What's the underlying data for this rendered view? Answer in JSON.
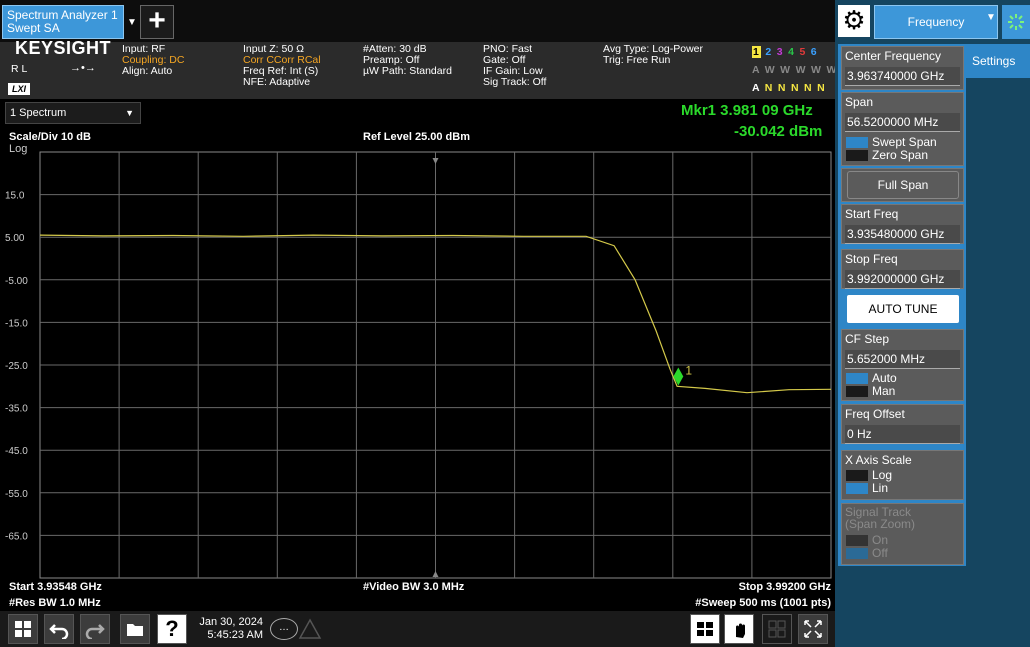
{
  "topbar": {
    "tab_label": "Spectrum Analyzer 1\nSwept SA",
    "tab_line1": "Spectrum Analyzer 1",
    "tab_line2": "Swept SA",
    "add_icon": "plus-icon"
  },
  "infobar": {
    "brand": "KEYSIGHT",
    "rl": "R L",
    "lxi": "LXI",
    "col1": [
      "Input: RF",
      "Coupling: DC",
      "Align: Auto"
    ],
    "col2": [
      "Input Z: 50 Ω",
      "Corr CCorr RCal",
      "Freq Ref: Int (S)",
      "NFE: Adaptive"
    ],
    "col3": [
      "#Atten: 30 dB",
      "Preamp: Off",
      "µW Path: Standard"
    ],
    "col4": [
      "PNO: Fast",
      "Gate: Off",
      "IF Gain: Low",
      "Sig Track: Off"
    ],
    "col5": [
      "Avg Type: Log-Power",
      "Trig: Free Run"
    ],
    "trace_row1": [
      "1",
      "2",
      "3",
      "4",
      "5",
      "6"
    ],
    "trace_row2": [
      "A",
      "W",
      "W",
      "W",
      "W",
      "W"
    ],
    "trace_row3": [
      "A",
      "N",
      "N",
      "N",
      "N",
      "N"
    ]
  },
  "plot": {
    "window_select": "1 Spectrum",
    "scale_div": "Scale/Div 10 dB",
    "scale_type": "Log",
    "ref_level": "Ref Level 25.00 dBm",
    "marker_freq": "Mkr1  3.981 09 GHz",
    "marker_amp": "-30.042 dBm",
    "marker_label": "1",
    "y_ticks": [
      "15.0",
      "5.00",
      "-5.00",
      "-15.0",
      "-25.0",
      "-35.0",
      "-45.0",
      "-55.0",
      "-65.0"
    ],
    "start": "Start 3.93548 GHz",
    "res_bw": "#Res BW 1.0 MHz",
    "video_bw": "#Video BW 3.0 MHz",
    "stop": "Stop 3.99200 GHz",
    "sweep": "#Sweep 500 ms (1001 pts)"
  },
  "chart_data": {
    "type": "line",
    "x_range": [
      3.93548,
      3.992
    ],
    "x_unit": "GHz",
    "ylim": [
      -75,
      25
    ],
    "grid": true,
    "series": [
      {
        "color": "#d4c94a",
        "x": [
          3.93548,
          3.94,
          3.945,
          3.95,
          3.955,
          3.96,
          3.965,
          3.97,
          3.9745,
          3.9765,
          3.978,
          3.9795,
          3.9805,
          3.981,
          3.983,
          3.986,
          3.989,
          3.992
        ],
        "y": [
          5.5,
          5.3,
          5.4,
          5.2,
          5.5,
          5.3,
          5.4,
          5.2,
          5.2,
          3.0,
          -5.0,
          -17.0,
          -26.0,
          -30.0,
          -30.5,
          -31.5,
          -30.8,
          -30.7
        ]
      }
    ],
    "marker": {
      "x": 3.98109,
      "y": -30.042
    }
  },
  "taskbar": {
    "date": "Jan 30, 2024",
    "time": "5:45:23 AM"
  },
  "rpanel": {
    "title": "Frequency",
    "settings_tab": "Settings",
    "center_label": "Center Frequency",
    "center_val": "3.963740000 GHz",
    "span_label": "Span",
    "span_val": "56.5200000 MHz",
    "swept_span": "Swept Span",
    "zero_span": "Zero Span",
    "full_span": "Full Span",
    "start_label": "Start Freq",
    "start_val": "3.935480000 GHz",
    "stop_label": "Stop Freq",
    "stop_val": "3.992000000 GHz",
    "auto_tune": "AUTO TUNE",
    "cf_step_label": "CF Step",
    "cf_step_val": "5.652000 MHz",
    "auto": "Auto",
    "man": "Man",
    "offset_label": "Freq Offset",
    "offset_val": "0 Hz",
    "xaxis_label": "X Axis Scale",
    "log": "Log",
    "lin": "Lin",
    "sigtrack_label1": "Signal Track",
    "sigtrack_label2": "(Span Zoom)",
    "on": "On",
    "off": "Off"
  }
}
